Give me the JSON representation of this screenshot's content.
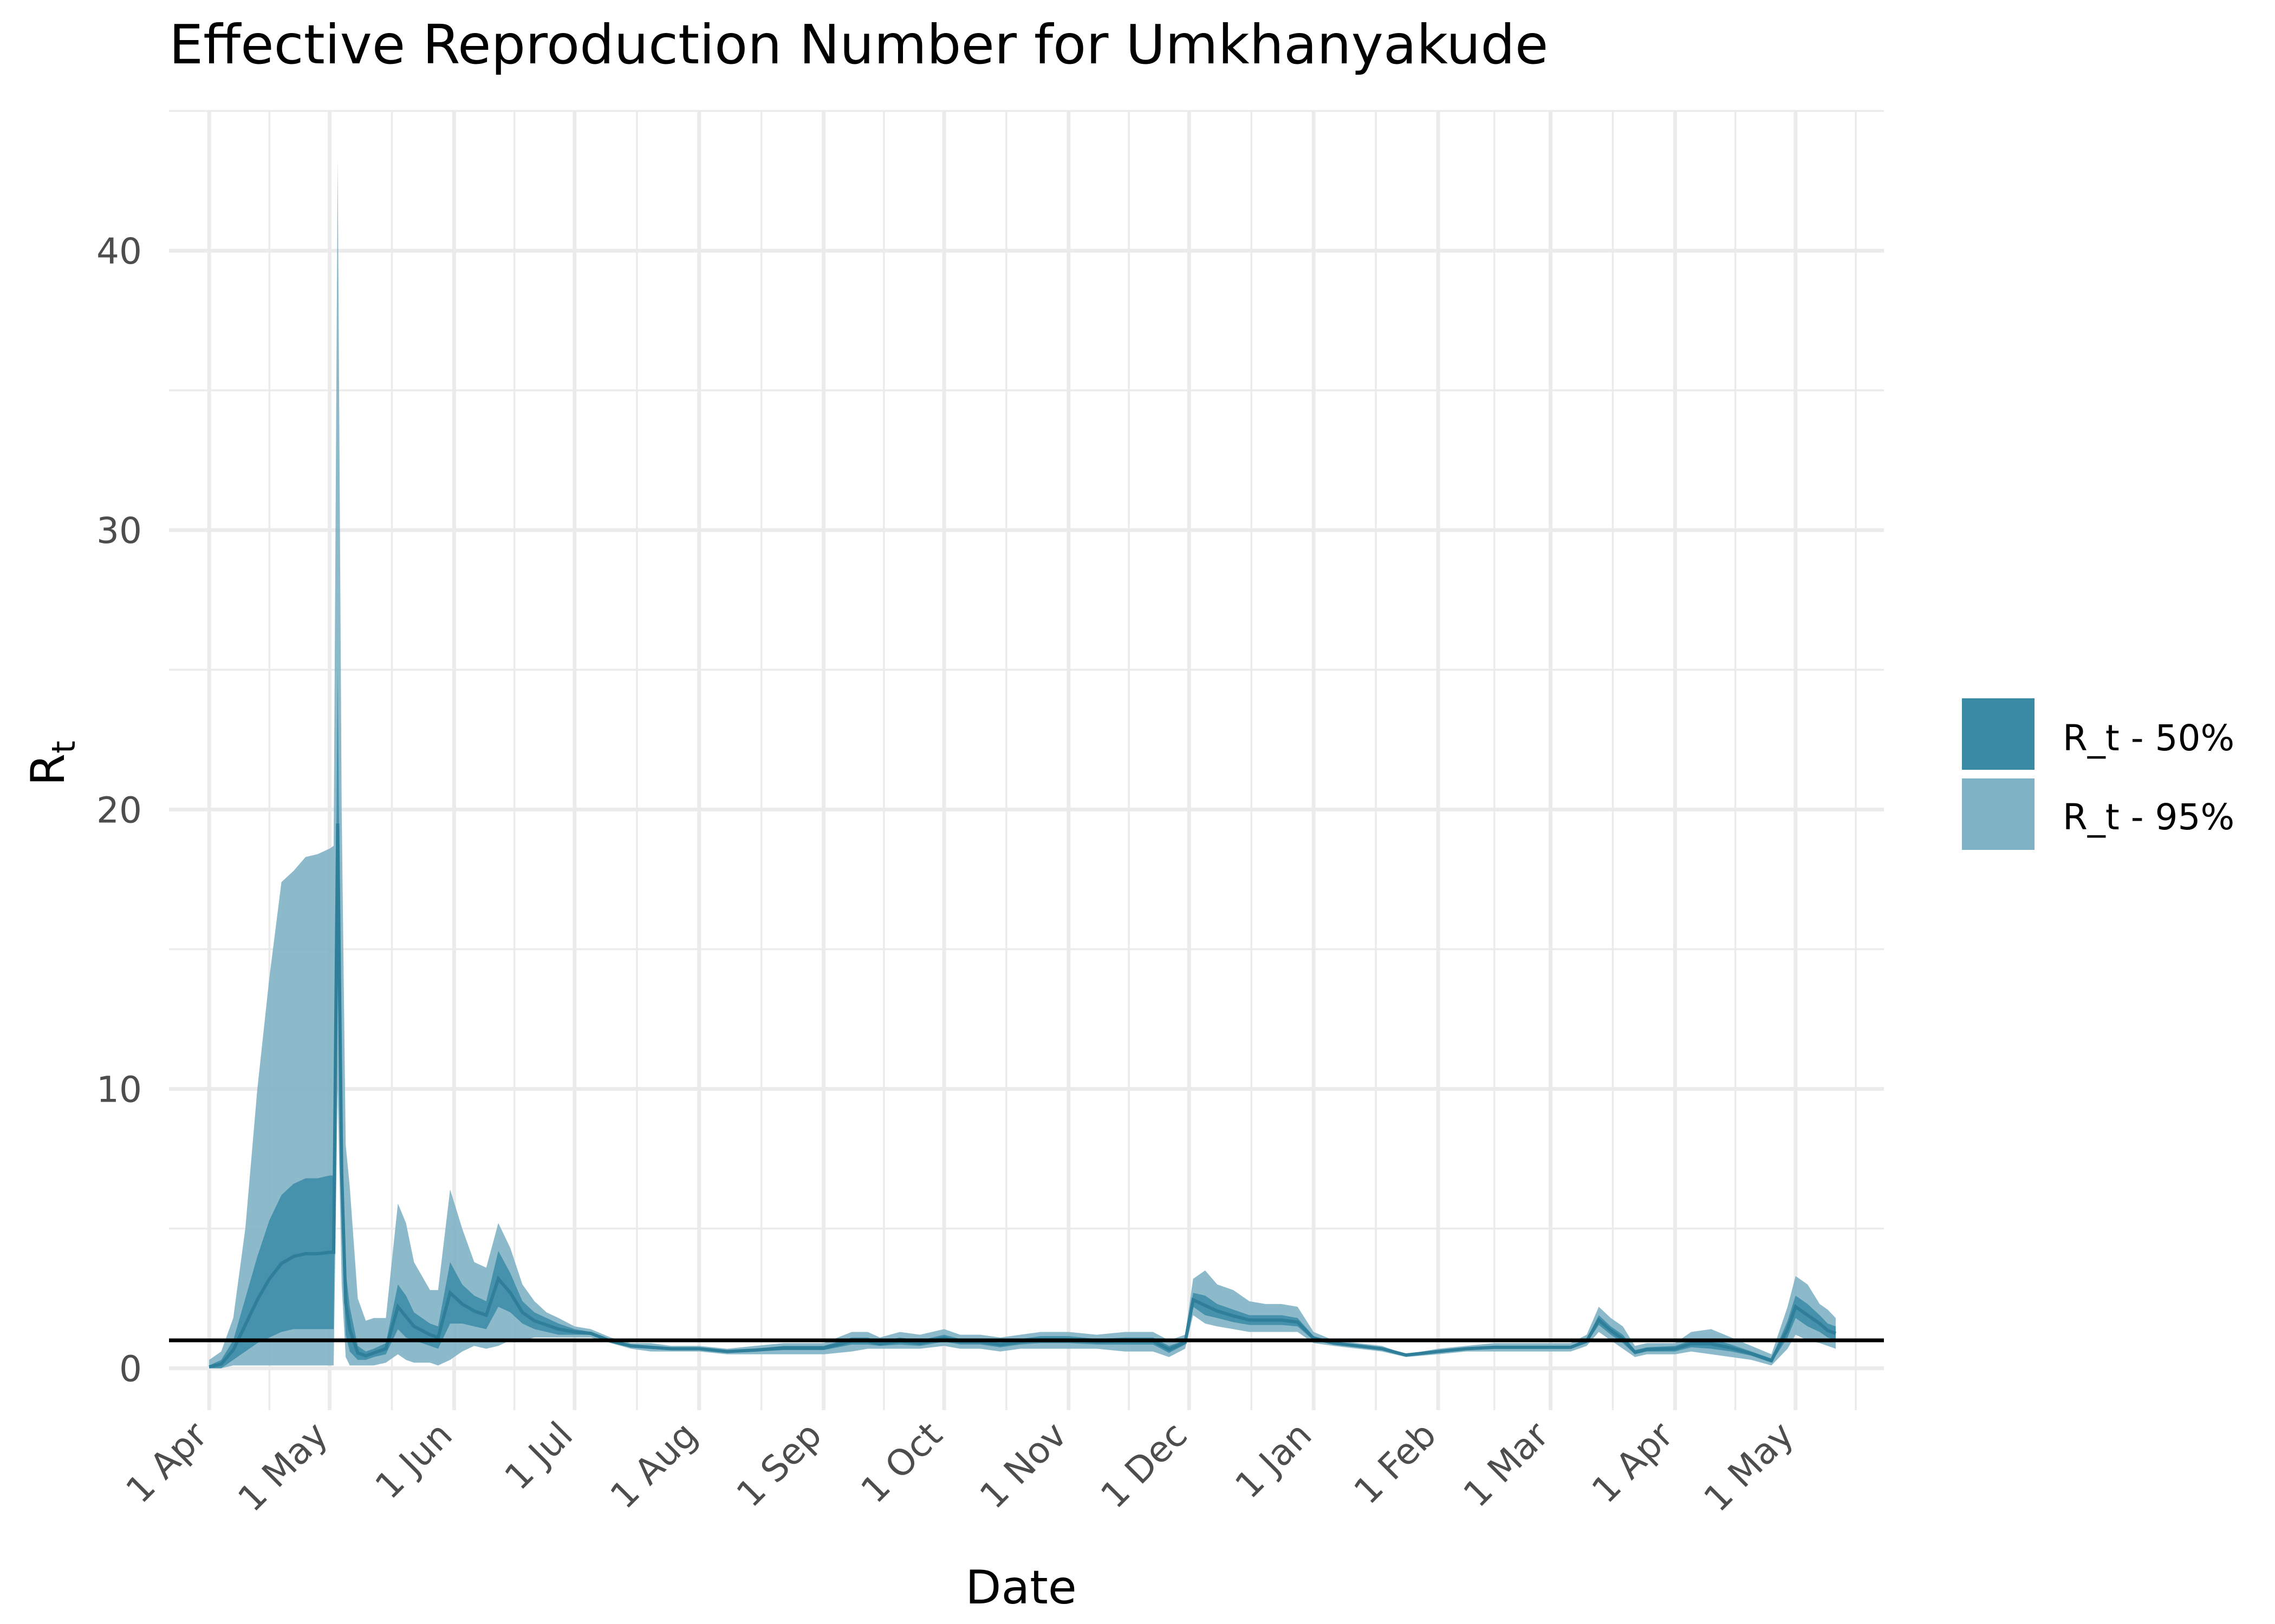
{
  "chart_data": {
    "type": "area",
    "title": "Effective Reproduction Number for Umkhanyakude",
    "xlabel": "Date",
    "ylabel": "R",
    "ylabel_subscript": "t",
    "x_range": [
      "2020-03-22",
      "2021-05-23"
    ],
    "ylim": [
      -1.5,
      45
    ],
    "y_ticks": [
      0,
      10,
      20,
      30,
      40
    ],
    "x_ticks": [
      {
        "date": "2020-04-01",
        "label": "1 Apr"
      },
      {
        "date": "2020-05-01",
        "label": "1 May"
      },
      {
        "date": "2020-06-01",
        "label": "1 Jun"
      },
      {
        "date": "2020-07-01",
        "label": "1 Jul"
      },
      {
        "date": "2020-08-01",
        "label": "1 Aug"
      },
      {
        "date": "2020-09-01",
        "label": "1 Sep"
      },
      {
        "date": "2020-10-01",
        "label": "1 Oct"
      },
      {
        "date": "2020-11-01",
        "label": "1 Nov"
      },
      {
        "date": "2020-12-01",
        "label": "1 Dec"
      },
      {
        "date": "2021-01-01",
        "label": "1 Jan"
      },
      {
        "date": "2021-02-01",
        "label": "1 Feb"
      },
      {
        "date": "2021-03-01",
        "label": "1 Mar"
      },
      {
        "date": "2021-04-01",
        "label": "1 Apr"
      },
      {
        "date": "2021-05-01",
        "label": "1 May"
      }
    ],
    "grid": true,
    "legend_position": "right",
    "reference_line": 1,
    "colors": {
      "band_50": "#3a8aa6",
      "band_95": "#7fb2c5",
      "line": "#2f7f9a",
      "reference": "#000000",
      "grid": "#ebebeb"
    },
    "series": [
      {
        "name": "R_t - 95%",
        "dates": [
          "2020-04-01",
          "2020-04-04",
          "2020-04-07",
          "2020-04-10",
          "2020-04-13",
          "2020-04-16",
          "2020-04-19",
          "2020-04-22",
          "2020-04-25",
          "2020-04-28",
          "2020-05-01",
          "2020-05-02",
          "2020-05-03",
          "2020-05-04",
          "2020-05-05",
          "2020-05-06",
          "2020-05-08",
          "2020-05-10",
          "2020-05-12",
          "2020-05-15",
          "2020-05-18",
          "2020-05-20",
          "2020-05-22",
          "2020-05-24",
          "2020-05-26",
          "2020-05-28",
          "2020-05-31",
          "2020-06-03",
          "2020-06-06",
          "2020-06-09",
          "2020-06-12",
          "2020-06-15",
          "2020-06-18",
          "2020-06-21",
          "2020-06-24",
          "2020-06-27",
          "2020-07-01",
          "2020-07-05",
          "2020-07-10",
          "2020-07-15",
          "2020-07-20",
          "2020-07-25",
          "2020-08-01",
          "2020-08-08",
          "2020-08-15",
          "2020-08-22",
          "2020-09-01",
          "2020-09-08",
          "2020-09-12",
          "2020-09-15",
          "2020-09-20",
          "2020-09-25",
          "2020-10-01",
          "2020-10-05",
          "2020-10-10",
          "2020-10-15",
          "2020-10-20",
          "2020-10-25",
          "2020-11-01",
          "2020-11-08",
          "2020-11-15",
          "2020-11-22",
          "2020-11-26",
          "2020-11-30",
          "2020-12-02",
          "2020-12-05",
          "2020-12-08",
          "2020-12-12",
          "2020-12-16",
          "2020-12-20",
          "2020-12-24",
          "2020-12-28",
          "2021-01-01",
          "2021-01-06",
          "2021-01-12",
          "2021-01-18",
          "2021-01-24",
          "2021-02-01",
          "2021-02-08",
          "2021-02-15",
          "2021-02-22",
          "2021-03-01",
          "2021-03-06",
          "2021-03-10",
          "2021-03-13",
          "2021-03-16",
          "2021-03-19",
          "2021-03-22",
          "2021-03-25",
          "2021-04-01",
          "2021-04-05",
          "2021-04-10",
          "2021-04-15",
          "2021-04-20",
          "2021-04-25",
          "2021-04-29",
          "2021-05-01",
          "2021-05-04",
          "2021-05-07",
          "2021-05-09",
          "2021-05-11"
        ],
        "upper": [
          0.3,
          0.6,
          1.8,
          5.0,
          10.0,
          14.0,
          17.4,
          17.8,
          18.3,
          18.4,
          18.6,
          18.7,
          43.3,
          20.0,
          8.0,
          6.5,
          2.5,
          1.7,
          1.8,
          1.8,
          5.9,
          5.2,
          3.8,
          3.3,
          2.8,
          2.8,
          6.4,
          5.0,
          3.8,
          3.6,
          5.2,
          4.3,
          3.0,
          2.4,
          2.0,
          1.8,
          1.5,
          1.4,
          1.1,
          0.9,
          0.9,
          0.8,
          0.8,
          0.7,
          0.8,
          0.9,
          0.9,
          1.3,
          1.3,
          1.1,
          1.3,
          1.2,
          1.4,
          1.2,
          1.2,
          1.1,
          1.2,
          1.3,
          1.3,
          1.2,
          1.3,
          1.3,
          1.0,
          1.2,
          3.2,
          3.5,
          3.0,
          2.8,
          2.4,
          2.3,
          2.3,
          2.2,
          1.3,
          1.0,
          0.9,
          0.8,
          0.5,
          0.7,
          0.8,
          0.9,
          0.9,
          0.9,
          0.9,
          1.2,
          2.2,
          1.8,
          1.5,
          0.8,
          0.9,
          0.9,
          1.3,
          1.4,
          1.1,
          0.8,
          0.5,
          2.2,
          3.3,
          3.0,
          2.3,
          2.1,
          1.8
        ],
        "lower": [
          0.0,
          0.0,
          0.1,
          0.1,
          0.1,
          0.1,
          0.1,
          0.1,
          0.1,
          0.1,
          0.1,
          0.1,
          10.0,
          3.0,
          0.4,
          0.1,
          0.1,
          0.1,
          0.1,
          0.2,
          0.5,
          0.3,
          0.2,
          0.2,
          0.2,
          0.1,
          0.3,
          0.6,
          0.8,
          0.7,
          0.8,
          1.0,
          1.0,
          1.1,
          1.1,
          1.1,
          1.1,
          1.1,
          0.9,
          0.7,
          0.6,
          0.6,
          0.6,
          0.5,
          0.5,
          0.5,
          0.5,
          0.6,
          0.7,
          0.7,
          0.7,
          0.7,
          0.8,
          0.7,
          0.7,
          0.6,
          0.7,
          0.7,
          0.7,
          0.7,
          0.6,
          0.6,
          0.4,
          0.7,
          1.9,
          1.6,
          1.5,
          1.4,
          1.3,
          1.3,
          1.3,
          1.3,
          0.9,
          0.8,
          0.7,
          0.6,
          0.4,
          0.5,
          0.6,
          0.6,
          0.6,
          0.6,
          0.6,
          0.8,
          1.3,
          1.0,
          0.7,
          0.4,
          0.5,
          0.5,
          0.6,
          0.5,
          0.4,
          0.3,
          0.1,
          0.7,
          1.2,
          1.0,
          0.9,
          0.8,
          0.7
        ]
      },
      {
        "name": "R_t - 50%",
        "dates": [
          "2020-04-01",
          "2020-04-04",
          "2020-04-07",
          "2020-04-10",
          "2020-04-13",
          "2020-04-16",
          "2020-04-19",
          "2020-04-22",
          "2020-04-25",
          "2020-04-28",
          "2020-05-01",
          "2020-05-02",
          "2020-05-03",
          "2020-05-04",
          "2020-05-05",
          "2020-05-06",
          "2020-05-08",
          "2020-05-10",
          "2020-05-12",
          "2020-05-15",
          "2020-05-18",
          "2020-05-20",
          "2020-05-22",
          "2020-05-24",
          "2020-05-26",
          "2020-05-28",
          "2020-05-31",
          "2020-06-03",
          "2020-06-06",
          "2020-06-09",
          "2020-06-12",
          "2020-06-15",
          "2020-06-18",
          "2020-06-21",
          "2020-06-24",
          "2020-06-27",
          "2020-07-01",
          "2020-07-05",
          "2020-07-10",
          "2020-07-15",
          "2020-07-20",
          "2020-07-25",
          "2020-08-01",
          "2020-08-08",
          "2020-08-15",
          "2020-08-22",
          "2020-09-01",
          "2020-09-08",
          "2020-09-12",
          "2020-09-15",
          "2020-09-20",
          "2020-09-25",
          "2020-10-01",
          "2020-10-05",
          "2020-10-10",
          "2020-10-15",
          "2020-10-20",
          "2020-10-25",
          "2020-11-01",
          "2020-11-08",
          "2020-11-15",
          "2020-11-22",
          "2020-11-26",
          "2020-11-30",
          "2020-12-02",
          "2020-12-05",
          "2020-12-08",
          "2020-12-12",
          "2020-12-16",
          "2020-12-20",
          "2020-12-24",
          "2020-12-28",
          "2021-01-01",
          "2021-01-06",
          "2021-01-12",
          "2021-01-18",
          "2021-01-24",
          "2021-02-01",
          "2021-02-08",
          "2021-02-15",
          "2021-02-22",
          "2021-03-01",
          "2021-03-06",
          "2021-03-10",
          "2021-03-13",
          "2021-03-16",
          "2021-03-19",
          "2021-03-22",
          "2021-03-25",
          "2021-04-01",
          "2021-04-05",
          "2021-04-10",
          "2021-04-15",
          "2021-04-20",
          "2021-04-25",
          "2021-04-29",
          "2021-05-01",
          "2021-05-04",
          "2021-05-07",
          "2021-05-09",
          "2021-05-11"
        ],
        "upper": [
          0.1,
          0.3,
          1.0,
          2.5,
          4.0,
          5.3,
          6.2,
          6.6,
          6.8,
          6.8,
          6.9,
          6.9,
          25.0,
          9.0,
          3.5,
          2.2,
          0.8,
          0.6,
          0.7,
          0.9,
          3.0,
          2.6,
          2.0,
          1.8,
          1.6,
          1.5,
          3.8,
          3.0,
          2.6,
          2.4,
          4.2,
          3.4,
          2.4,
          2.0,
          1.8,
          1.6,
          1.4,
          1.3,
          1.0,
          0.85,
          0.8,
          0.75,
          0.75,
          0.65,
          0.7,
          0.8,
          0.8,
          1.1,
          1.1,
          0.95,
          1.1,
          1.0,
          1.2,
          1.05,
          1.05,
          0.95,
          1.05,
          1.15,
          1.15,
          1.05,
          1.1,
          1.1,
          0.8,
          1.0,
          2.7,
          2.6,
          2.3,
          2.1,
          1.9,
          1.9,
          1.9,
          1.8,
          1.15,
          0.95,
          0.85,
          0.75,
          0.5,
          0.65,
          0.75,
          0.8,
          0.8,
          0.8,
          0.8,
          1.05,
          1.9,
          1.5,
          1.2,
          0.65,
          0.75,
          0.8,
          1.0,
          1.05,
          0.85,
          0.6,
          0.35,
          1.7,
          2.6,
          2.3,
          1.9,
          1.6,
          1.5
        ],
        "lower": [
          0.0,
          0.0,
          0.3,
          0.6,
          0.9,
          1.1,
          1.3,
          1.4,
          1.4,
          1.4,
          1.4,
          1.4,
          14.0,
          5.0,
          1.2,
          0.6,
          0.3,
          0.3,
          0.4,
          0.5,
          1.4,
          1.1,
          1.0,
          0.9,
          0.8,
          0.7,
          1.6,
          1.6,
          1.5,
          1.4,
          2.2,
          2.0,
          1.6,
          1.4,
          1.3,
          1.2,
          1.2,
          1.2,
          0.95,
          0.75,
          0.7,
          0.65,
          0.65,
          0.55,
          0.6,
          0.65,
          0.65,
          0.85,
          0.85,
          0.8,
          0.85,
          0.8,
          0.95,
          0.85,
          0.85,
          0.75,
          0.85,
          0.9,
          0.9,
          0.85,
          0.85,
          0.85,
          0.55,
          0.85,
          2.2,
          1.9,
          1.8,
          1.65,
          1.55,
          1.55,
          1.55,
          1.5,
          1.0,
          0.85,
          0.75,
          0.65,
          0.45,
          0.55,
          0.65,
          0.7,
          0.7,
          0.7,
          0.7,
          0.9,
          1.55,
          1.2,
          0.9,
          0.5,
          0.6,
          0.6,
          0.75,
          0.7,
          0.6,
          0.45,
          0.2,
          1.1,
          1.8,
          1.5,
          1.3,
          1.1,
          1.0
        ]
      }
    ]
  }
}
